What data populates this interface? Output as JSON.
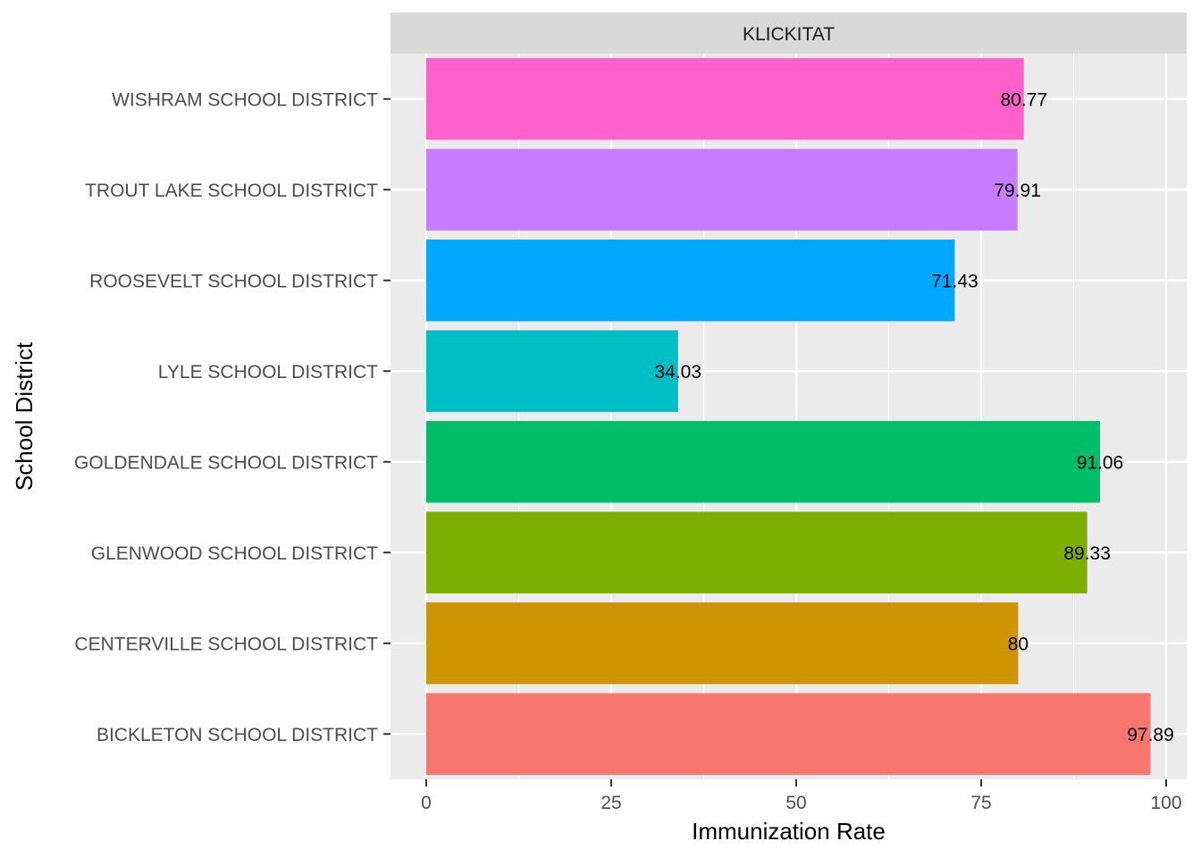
{
  "chart_data": {
    "type": "bar",
    "orientation": "horizontal",
    "facet": "KLICKITAT",
    "xlabel": "Immunization Rate",
    "ylabel": "School District",
    "xlim": [
      0,
      102
    ],
    "x_ticks": [
      0,
      25,
      50,
      75,
      100
    ],
    "grid": true,
    "legend": "none",
    "categories": [
      "BICKLETON SCHOOL DISTRICT",
      "CENTERVILLE SCHOOL DISTRICT",
      "GLENWOOD SCHOOL DISTRICT",
      "GOLDENDALE SCHOOL DISTRICT",
      "LYLE SCHOOL DISTRICT",
      "ROOSEVELT SCHOOL DISTRICT",
      "TROUT LAKE SCHOOL DISTRICT",
      "WISHRAM SCHOOL DISTRICT"
    ],
    "values": [
      97.89,
      80,
      89.33,
      91.06,
      34.03,
      71.43,
      79.91,
      80.77
    ],
    "value_labels": [
      "97.89",
      "80",
      "89.33",
      "91.06",
      "34.03",
      "71.43",
      "79.91",
      "80.77"
    ],
    "colors": [
      "#F8766D",
      "#CD9600",
      "#7CAE00",
      "#00BE67",
      "#00BFC4",
      "#00A9FF",
      "#C77CFF",
      "#FF61CC"
    ]
  }
}
